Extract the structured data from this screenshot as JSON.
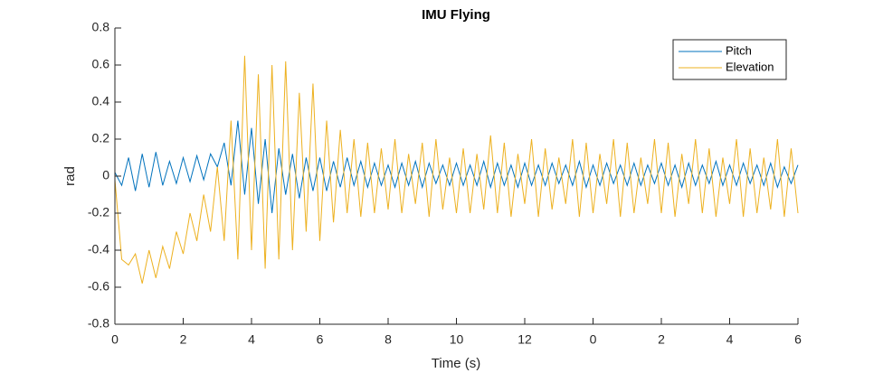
{
  "chart_data": {
    "type": "line",
    "title": "IMU Flying",
    "x_label": "Time (s)",
    "y_label": "rad",
    "xlim": [
      0,
      20
    ],
    "ylim": [
      -0.8,
      0.8
    ],
    "xticks": [
      0,
      2,
      4,
      6,
      8,
      10,
      12,
      {
        "value": 14,
        "label": "0"
      },
      {
        "value": 16,
        "label": "2"
      },
      {
        "value": 18,
        "label": "4"
      },
      {
        "value": 20,
        "label": "6"
      }
    ],
    "yticks": [
      -0.8,
      -0.6,
      -0.4,
      -0.2,
      0,
      0.2,
      0.4,
      0.6,
      0.8
    ],
    "legend": "northeast",
    "grid": false,
    "x": [
      0,
      0.2,
      0.4,
      0.6,
      0.8,
      1,
      1.2,
      1.4,
      1.6,
      1.8,
      2,
      2.2,
      2.4,
      2.6,
      2.8,
      3,
      3.2,
      3.4,
      3.6,
      3.8,
      4,
      4.2,
      4.4,
      4.6,
      4.8,
      5,
      5.2,
      5.4,
      5.6,
      5.8,
      6,
      6.2,
      6.4,
      6.6,
      6.8,
      7,
      7.2,
      7.4,
      7.6,
      7.8,
      8,
      8.2,
      8.4,
      8.6,
      8.8,
      9,
      9.2,
      9.4,
      9.6,
      9.8,
      10,
      10.2,
      10.4,
      10.6,
      10.8,
      11,
      11.2,
      11.4,
      11.6,
      11.8,
      12,
      12.2,
      12.4,
      12.6,
      12.8,
      13,
      13.2,
      13.4,
      13.6,
      13.8,
      14,
      14.2,
      14.4,
      14.6,
      14.8,
      15,
      15.2,
      15.4,
      15.6,
      15.8,
      16,
      16.2,
      16.4,
      16.6,
      16.8,
      17,
      17.2,
      17.4,
      17.6,
      17.8,
      18,
      18.2,
      18.4,
      18.6,
      18.8,
      19,
      19.2,
      19.4,
      19.6,
      19.8,
      20
    ],
    "series": [
      {
        "name": "Pitch",
        "color": "#0072BD",
        "values": [
          0.02,
          -0.05,
          0.1,
          -0.08,
          0.12,
          -0.06,
          0.13,
          -0.05,
          0.08,
          -0.04,
          0.1,
          -0.03,
          0.11,
          -0.02,
          0.12,
          0.05,
          0.18,
          -0.05,
          0.3,
          -0.1,
          0.26,
          -0.15,
          0.2,
          -0.2,
          0.15,
          -0.1,
          0.12,
          -0.12,
          0.1,
          -0.08,
          0.1,
          -0.08,
          0.08,
          -0.06,
          0.1,
          -0.05,
          0.08,
          -0.06,
          0.07,
          -0.05,
          0.06,
          -0.06,
          0.07,
          -0.05,
          0.08,
          -0.06,
          0.07,
          -0.04,
          0.06,
          -0.05,
          0.07,
          -0.05,
          0.06,
          -0.05,
          0.08,
          -0.06,
          0.07,
          -0.05,
          0.06,
          -0.06,
          0.07,
          -0.05,
          0.06,
          -0.05,
          0.07,
          -0.04,
          0.06,
          -0.05,
          0.08,
          -0.06,
          0.06,
          -0.05,
          0.07,
          -0.04,
          0.06,
          -0.05,
          0.07,
          -0.05,
          0.06,
          -0.04,
          0.07,
          -0.05,
          0.06,
          -0.06,
          0.07,
          -0.05,
          0.06,
          -0.04,
          0.08,
          -0.05,
          0.06,
          -0.05,
          0.07,
          -0.04,
          0.06,
          -0.05,
          0.07,
          -0.06,
          0.05,
          -0.04,
          0.06
        ]
      },
      {
        "name": "Elevation",
        "color": "#EDB120",
        "values": [
          -0.02,
          -0.45,
          -0.48,
          -0.42,
          -0.58,
          -0.4,
          -0.55,
          -0.38,
          -0.5,
          -0.3,
          -0.42,
          -0.2,
          -0.35,
          -0.1,
          -0.3,
          0.05,
          -0.35,
          0.3,
          -0.45,
          0.65,
          -0.4,
          0.55,
          -0.5,
          0.6,
          -0.45,
          0.62,
          -0.4,
          0.45,
          -0.3,
          0.5,
          -0.35,
          0.3,
          -0.25,
          0.25,
          -0.2,
          0.2,
          -0.22,
          0.18,
          -0.2,
          0.15,
          -0.18,
          0.2,
          -0.2,
          0.12,
          -0.15,
          0.18,
          -0.22,
          0.2,
          -0.18,
          0.1,
          -0.2,
          0.15,
          -0.2,
          0.12,
          -0.18,
          0.22,
          -0.2,
          0.18,
          -0.22,
          0.12,
          -0.15,
          0.2,
          -0.22,
          0.15,
          -0.18,
          0.1,
          -0.15,
          0.2,
          -0.22,
          0.18,
          -0.2,
          0.12,
          -0.15,
          0.2,
          -0.22,
          0.18,
          -0.2,
          0.1,
          -0.15,
          0.2,
          -0.2,
          0.18,
          -0.22,
          0.12,
          -0.15,
          0.2,
          -0.2,
          0.15,
          -0.22,
          0.1,
          -0.15,
          0.2,
          -0.22,
          0.15,
          -0.2,
          0.1,
          -0.18,
          0.2,
          -0.22,
          0.15,
          -0.2
        ]
      }
    ]
  }
}
